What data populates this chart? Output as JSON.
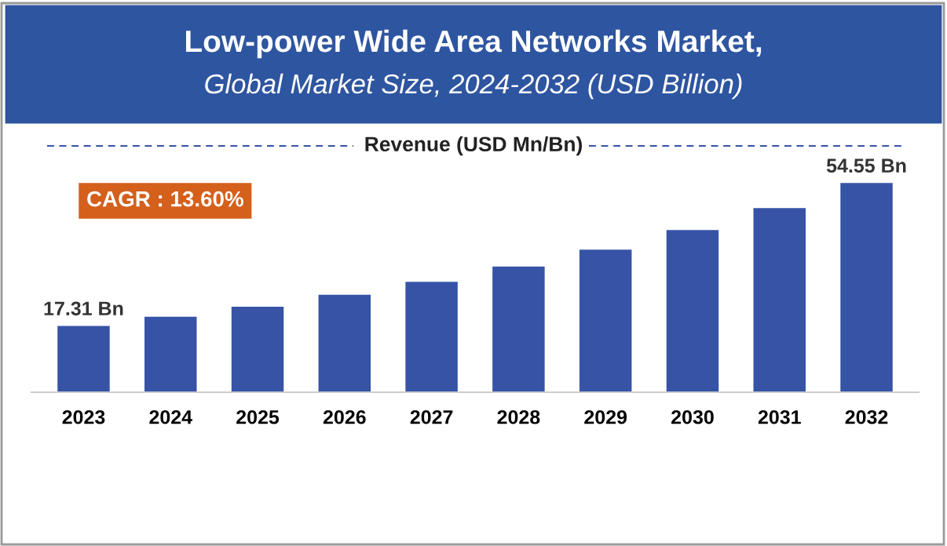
{
  "chart_data": {
    "type": "bar",
    "title": "Low-power Wide Area Networks Market,",
    "subtitle": "Global Market Size, 2024-2032 (USD Billion)",
    "ylabel": "Revenue (USD Mn/Bn)",
    "categories": [
      "2023",
      "2024",
      "2025",
      "2026",
      "2027",
      "2028",
      "2029",
      "2030",
      "2031",
      "2032"
    ],
    "values": [
      17.31,
      19.7,
      22.3,
      25.4,
      28.8,
      32.8,
      37.2,
      42.3,
      48.0,
      54.55
    ],
    "value_labels": [
      "17.31 Bn",
      null,
      null,
      null,
      null,
      null,
      null,
      null,
      null,
      "54.55 Bn"
    ],
    "color": "#3653a6",
    "legend": false,
    "grid": false,
    "annotations": [
      "CAGR : 13.60%"
    ]
  }
}
